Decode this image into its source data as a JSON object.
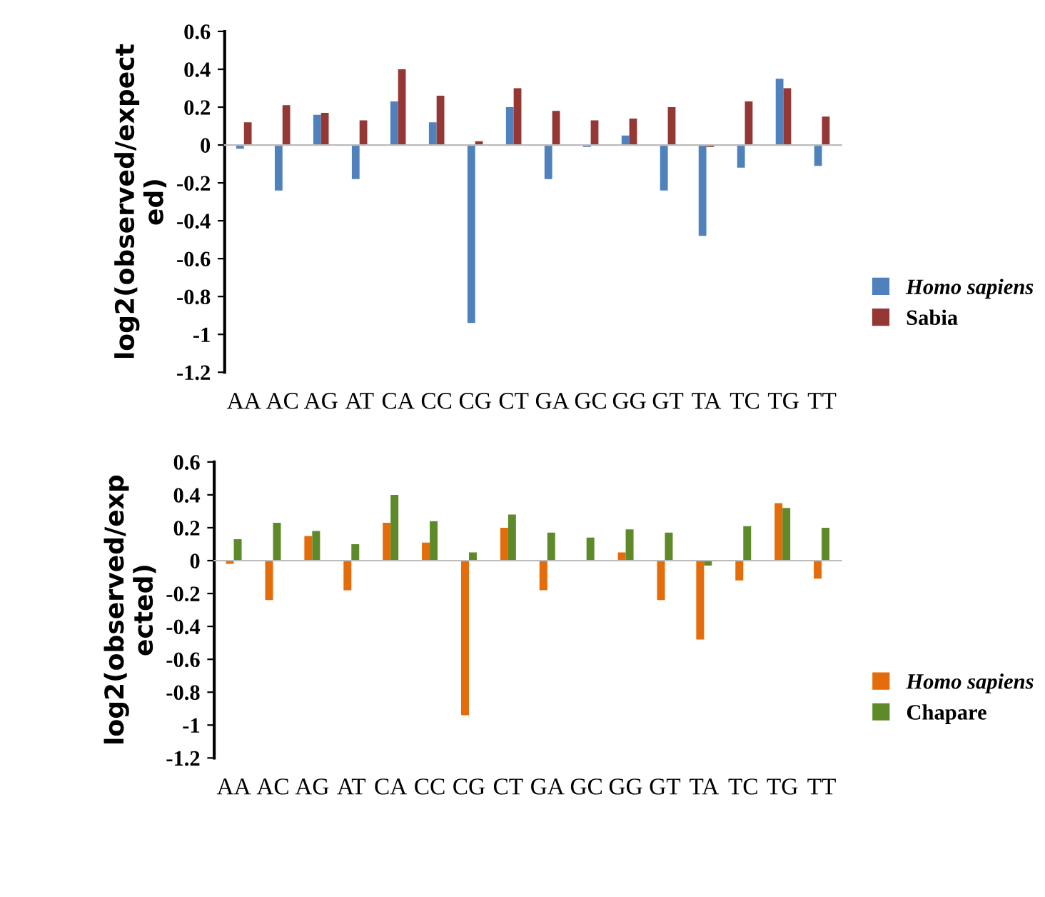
{
  "chart_data": [
    {
      "type": "bar",
      "ylabel": "log2(observed/expect\ned)",
      "categories": [
        "AA",
        "AC",
        "AG",
        "AT",
        "CA",
        "CC",
        "CG",
        "CT",
        "GA",
        "GC",
        "GG",
        "GT",
        "TA",
        "TC",
        "TG",
        "TT"
      ],
      "series": [
        {
          "name": "Homo sapiens",
          "color": "#4f81bd",
          "values": [
            -0.02,
            -0.24,
            0.16,
            -0.18,
            0.23,
            0.12,
            -0.94,
            0.2,
            -0.18,
            -0.01,
            0.05,
            -0.24,
            -0.48,
            -0.12,
            0.35,
            -0.11
          ]
        },
        {
          "name": "Sabia",
          "color": "#953735",
          "values": [
            0.12,
            0.21,
            0.17,
            0.13,
            0.4,
            0.26,
            0.02,
            0.3,
            0.18,
            0.13,
            0.14,
            0.2,
            -0.01,
            0.23,
            0.3,
            0.15
          ]
        }
      ],
      "ylim": [
        -1.2,
        0.6
      ],
      "yticks": [
        -1.2,
        -1,
        -0.8,
        -0.6,
        -0.4,
        -0.2,
        0,
        0.2,
        0.4,
        0.6
      ],
      "legend": "right"
    },
    {
      "type": "bar",
      "ylabel": "log2(observed/exp\nected)",
      "categories": [
        "AA",
        "AC",
        "AG",
        "AT",
        "CA",
        "CC",
        "CG",
        "CT",
        "GA",
        "GC",
        "GG",
        "GT",
        "TA",
        "TC",
        "TG",
        "TT"
      ],
      "series": [
        {
          "name": "Homo sapiens",
          "color": "#e46c0a",
          "values": [
            -0.02,
            -0.24,
            0.15,
            -0.18,
            0.23,
            0.11,
            -0.94,
            0.2,
            -0.18,
            0,
            0.05,
            -0.24,
            -0.48,
            -0.12,
            0.35,
            -0.11
          ]
        },
        {
          "name": "Chapare",
          "color": "#5f8a2a",
          "values": [
            0.13,
            0.23,
            0.18,
            0.1,
            0.4,
            0.24,
            0.05,
            0.28,
            0.17,
            0.14,
            0.19,
            0.17,
            -0.03,
            0.21,
            0.32,
            0.2
          ]
        }
      ],
      "ylim": [
        -1.2,
        0.6
      ],
      "yticks": [
        -1.2,
        -1,
        -0.8,
        -0.6,
        -0.4,
        -0.2,
        0,
        0.2,
        0.4,
        0.6
      ],
      "legend": "right"
    }
  ]
}
